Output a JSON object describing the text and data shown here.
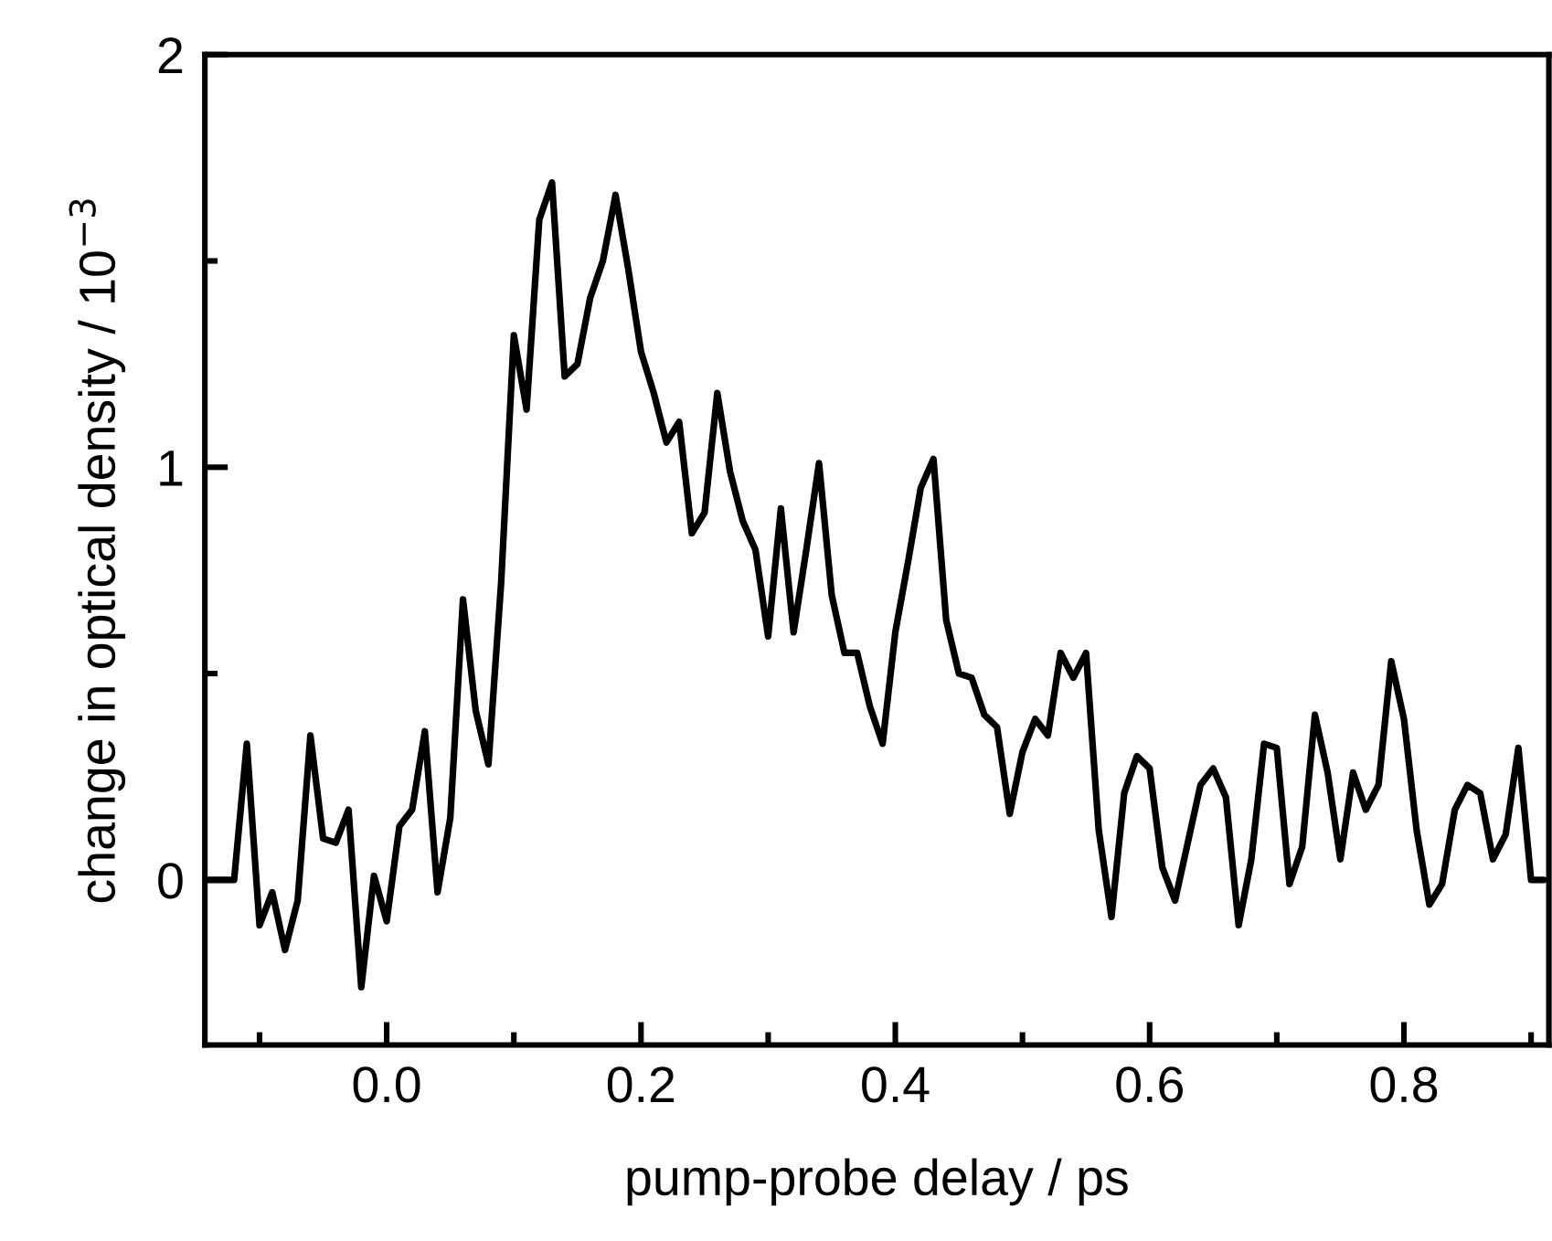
{
  "chart_data": {
    "type": "line",
    "xlabel": "pump-probe delay / ps",
    "ylabel": "change in optical density / 10$^{−3}$",
    "x": [
      -0.14,
      -0.13,
      -0.12,
      -0.11,
      -0.1,
      -0.09,
      -0.08,
      -0.07,
      -0.06,
      -0.05,
      -0.04,
      -0.03,
      -0.02,
      -0.01,
      0.0,
      0.01,
      0.02,
      0.03,
      0.04,
      0.05,
      0.06,
      0.07,
      0.08,
      0.09,
      0.1,
      0.11,
      0.12,
      0.13,
      0.14,
      0.15,
      0.16,
      0.17,
      0.18,
      0.19,
      0.2,
      0.21,
      0.22,
      0.23,
      0.24,
      0.25,
      0.26,
      0.27,
      0.28,
      0.29,
      0.3,
      0.31,
      0.32,
      0.33,
      0.34,
      0.35,
      0.36,
      0.37,
      0.38,
      0.39,
      0.4,
      0.41,
      0.42,
      0.43,
      0.44,
      0.45,
      0.46,
      0.47,
      0.48,
      0.49,
      0.5,
      0.51,
      0.52,
      0.53,
      0.54,
      0.55,
      0.56,
      0.57,
      0.58,
      0.59,
      0.6,
      0.61,
      0.62,
      0.63,
      0.64,
      0.65,
      0.66,
      0.67,
      0.68,
      0.69,
      0.7,
      0.71,
      0.72,
      0.73,
      0.74,
      0.75,
      0.76,
      0.77,
      0.78,
      0.79,
      0.8,
      0.81,
      0.82,
      0.83,
      0.84,
      0.85,
      0.86,
      0.87,
      0.88,
      0.89,
      0.9,
      0.91
    ],
    "series": [
      {
        "color": "#000000",
        "values": [
          0,
          0,
          0,
          0.33,
          -0.11,
          -0.03,
          -0.17,
          -0.05,
          0.35,
          0.1,
          0.09,
          0.17,
          -0.26,
          0.01,
          -0.1,
          0.13,
          0.17,
          0.36,
          -0.03,
          0.15,
          0.68,
          0.41,
          0.28,
          0.72,
          1.32,
          1.14,
          1.6,
          1.69,
          1.22,
          1.25,
          1.41,
          1.5,
          1.66,
          1.48,
          1.28,
          1.18,
          1.06,
          1.11,
          0.84,
          0.89,
          1.18,
          0.99,
          0.87,
          0.8,
          0.59,
          0.9,
          0.6,
          0.8,
          1.01,
          0.69,
          0.55,
          0.55,
          0.42,
          0.33,
          0.6,
          0.77,
          0.95,
          1.02,
          0.63,
          0.5,
          0.49,
          0.4,
          0.37,
          0.16,
          0.31,
          0.39,
          0.35,
          0.55,
          0.49,
          0.55,
          0.12,
          -0.09,
          0.21,
          0.3,
          0.27,
          0.03,
          -0.05,
          0.09,
          0.23,
          0.27,
          0.2,
          -0.11,
          0.05,
          0.33,
          0.32,
          -0.01,
          0.08,
          0.4,
          0.26,
          0.05,
          0.26,
          0.17,
          0.23,
          0.53,
          0.39,
          0.12,
          -0.06,
          -0.01,
          0.17,
          0.23,
          0.21,
          0.05,
          0.11,
          0.32,
          0,
          0
        ]
      }
    ],
    "xlim": [
      -0.143,
      0.914
    ],
    "ylim": [
      -0.4,
      2
    ],
    "xticks": [
      {
        "value": -0.1,
        "label": null
      },
      {
        "value": 0.0,
        "label": "0.0"
      },
      {
        "value": 0.1,
        "label": null
      },
      {
        "value": 0.2,
        "label": "0.2"
      },
      {
        "value": 0.3,
        "label": null
      },
      {
        "value": 0.4,
        "label": "0.4"
      },
      {
        "value": 0.5,
        "label": null
      },
      {
        "value": 0.6,
        "label": "0.6"
      },
      {
        "value": 0.7,
        "label": null
      },
      {
        "value": 0.8,
        "label": "0.8"
      },
      {
        "value": 0.9,
        "label": null
      }
    ],
    "yticks": [
      0,
      {
        "value": 0.5,
        "label": null
      },
      1,
      {
        "value": 1.5,
        "label": null
      },
      2
    ],
    "grid": false,
    "legend": false,
    "marker": "none",
    "line_style": "solid"
  }
}
